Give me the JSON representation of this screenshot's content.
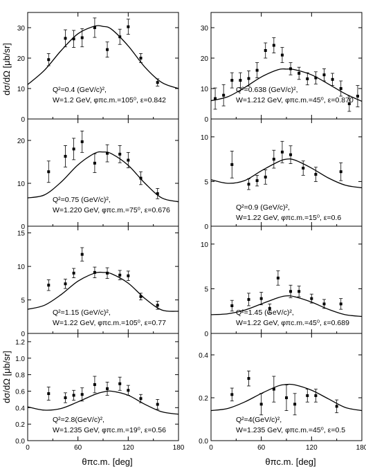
{
  "figure": {
    "y_axis_label": "dσ/dΩ [μb/sr]",
    "x_axis_label": "θπc.m. [deg]",
    "x_ticks": [
      "0",
      "60",
      "120",
      "180"
    ]
  },
  "chart_data": [
    {
      "type": "scatter",
      "panel": "left-row-1",
      "annotation": [
        "Q²=0.4 (GeV/c)²,",
        "W=1.2 GeV, φπc.m.=105⁰, ε=0.842"
      ],
      "xlim": [
        0,
        180
      ],
      "ylim": [
        0,
        35
      ],
      "y_ticks": [
        "0",
        "10",
        "20",
        "30"
      ],
      "x": [
        25,
        45,
        55,
        65,
        80,
        95,
        110,
        120,
        135,
        155
      ],
      "y": [
        19.5,
        26.5,
        26.3,
        26.7,
        30,
        22.8,
        27,
        30.3,
        20,
        12
      ],
      "err": [
        2,
        2.8,
        2.8,
        3,
        3.2,
        2.5,
        2.5,
        2.5,
        1.5,
        1.2
      ],
      "curve": {
        "x": [
          0,
          20,
          40,
          60,
          80,
          90,
          100,
          120,
          140,
          160,
          180
        ],
        "y": [
          11.3,
          16,
          22.5,
          28,
          30.5,
          30.4,
          29.5,
          24,
          17,
          12,
          10
        ]
      }
    },
    {
      "type": "scatter",
      "panel": "right-row-1",
      "annotation": [
        "Q²=0.638 (GeV/c)²,",
        "W=1.212 GeV, φπc.m.=45⁰, ε=0.870"
      ],
      "xlim": [
        0,
        180
      ],
      "ylim": [
        0,
        35
      ],
      "y_ticks": [
        "0",
        "10",
        "20",
        "30"
      ],
      "x": [
        5,
        15,
        25,
        35,
        45,
        55,
        65,
        75,
        85,
        95,
        105,
        115,
        125,
        135,
        145,
        155,
        165,
        175
      ],
      "y": [
        6.7,
        7.8,
        12.7,
        12.7,
        13.3,
        16,
        22.5,
        24.2,
        21,
        16.5,
        15,
        13.2,
        13.5,
        14.5,
        13,
        10,
        5,
        7.5
      ],
      "err": [
        3.5,
        3.5,
        2.5,
        2.5,
        2.5,
        2.5,
        2.5,
        2.5,
        2.5,
        2,
        2,
        2,
        2,
        2,
        2,
        2.5,
        2.5,
        3.5
      ],
      "curve": {
        "x": [
          0,
          20,
          40,
          60,
          80,
          90,
          100,
          120,
          140,
          160,
          180
        ],
        "y": [
          6,
          7.3,
          10.3,
          13.8,
          16.2,
          16.4,
          16.2,
          14.5,
          11.5,
          8.3,
          5.8
        ]
      }
    },
    {
      "type": "scatter",
      "panel": "left-row-2",
      "annotation": [
        "Q²=0.75 (GeV/c)²,",
        "W=1.220 GeV, φπc.m.=75⁰, ε=0.676"
      ],
      "xlim": [
        0,
        180
      ],
      "ylim": [
        0,
        25
      ],
      "y_ticks": [
        "0",
        "10",
        "20"
      ],
      "x": [
        25,
        45,
        55,
        65,
        80,
        95,
        110,
        120,
        135,
        155
      ],
      "y": [
        12.7,
        16.3,
        18,
        19.7,
        14.7,
        17,
        16.8,
        15.4,
        11.2,
        7.6
      ],
      "err": [
        2.5,
        2.5,
        2.5,
        2.5,
        2.2,
        2,
        2,
        1.8,
        1.5,
        1.2
      ],
      "curve": {
        "x": [
          0,
          20,
          40,
          60,
          80,
          90,
          100,
          120,
          140,
          160,
          180
        ],
        "y": [
          6.6,
          7.3,
          10.3,
          14.3,
          17,
          17.3,
          16.9,
          14.2,
          10,
          6.6,
          5.7
        ]
      }
    },
    {
      "type": "scatter",
      "panel": "right-row-2",
      "annotation": [
        "Q²=0.9 (GeV/c)²,",
        "W=1.22 GeV, φπc.m.=15⁰, ε=0.6"
      ],
      "xlim": [
        0,
        180
      ],
      "ylim": [
        0,
        12
      ],
      "y_ticks": [
        "0",
        "5",
        "10"
      ],
      "x": [
        25,
        45,
        55,
        65,
        75,
        85,
        95,
        110,
        125,
        155
      ],
      "y": [
        6.9,
        4.7,
        5.1,
        5.5,
        7.5,
        8.3,
        8,
        6.5,
        5.8,
        6.1
      ],
      "err": [
        1.5,
        0.6,
        0.6,
        0.8,
        1,
        1.2,
        1,
        0.8,
        0.8,
        1
      ],
      "curve": {
        "x": [
          0,
          20,
          40,
          60,
          80,
          90,
          100,
          120,
          140,
          160,
          180
        ],
        "y": [
          5.2,
          4.8,
          5.1,
          6.2,
          7.2,
          7.5,
          7.4,
          6.5,
          5.4,
          4.6,
          4.3
        ]
      }
    },
    {
      "type": "scatter",
      "panel": "left-row-3",
      "annotation": [
        "Q²=1.15 (GeV/c)²,",
        "W=1.22 GeV, φπc.m.=105⁰, ε=0.77"
      ],
      "xlim": [
        0,
        180
      ],
      "ylim": [
        0,
        16
      ],
      "y_ticks": [
        "0",
        "5",
        "10",
        "15"
      ],
      "x": [
        25,
        45,
        55,
        65,
        80,
        95,
        110,
        120,
        135,
        155
      ],
      "y": [
        7.2,
        7.4,
        9,
        11.8,
        9.1,
        9,
        8.7,
        8.6,
        5.5,
        4.2
      ],
      "err": [
        0.8,
        0.7,
        0.7,
        1,
        0.8,
        0.8,
        0.7,
        0.7,
        0.5,
        0.6
      ],
      "curve": {
        "x": [
          0,
          20,
          40,
          60,
          80,
          90,
          100,
          120,
          140,
          160,
          180
        ],
        "y": [
          3.6,
          4.2,
          5.8,
          7.8,
          9,
          9.1,
          8.9,
          7.5,
          5.2,
          3.5,
          3.3
        ]
      }
    },
    {
      "type": "scatter",
      "panel": "right-row-3",
      "annotation": [
        "Q²=1.45 (GeV/c)²,",
        "W=1.22 GeV, φπc.m.=45⁰, ε=0.689"
      ],
      "xlim": [
        0,
        180
      ],
      "ylim": [
        0,
        12
      ],
      "y_ticks": [
        "0",
        "5",
        "10"
      ],
      "x": [
        25,
        45,
        60,
        70,
        80,
        95,
        105,
        120,
        135,
        155
      ],
      "y": [
        3.1,
        3.8,
        3.9,
        2.8,
        6.2,
        4.7,
        4.7,
        3.9,
        3.3,
        3.3
      ],
      "err": [
        0.6,
        0.7,
        0.7,
        0.5,
        0.8,
        0.7,
        0.6,
        0.5,
        0.5,
        0.6
      ],
      "curve": {
        "x": [
          0,
          20,
          40,
          60,
          80,
          90,
          100,
          120,
          140,
          160,
          180
        ],
        "y": [
          2.1,
          2.2,
          2.6,
          3.3,
          4,
          4.2,
          4.1,
          3.5,
          2.7,
          2.1,
          1.9
        ]
      }
    },
    {
      "type": "scatter",
      "panel": "left-row-4",
      "annotation": [
        "Q²=2.8(GeV/c)²,",
        "W=1.235 GeV, φπc.m.=19⁰, ε=0.56"
      ],
      "xlim": [
        0,
        180
      ],
      "ylim": [
        0,
        1.3
      ],
      "y_ticks": [
        "0.0",
        "0.2",
        "0.4",
        "0.6",
        "0.8",
        "1.0",
        "1.2"
      ],
      "x": [
        25,
        45,
        55,
        65,
        80,
        95,
        110,
        120,
        135,
        155
      ],
      "y": [
        0.57,
        0.52,
        0.55,
        0.56,
        0.68,
        0.63,
        0.69,
        0.61,
        0.51,
        0.44
      ],
      "err": [
        0.08,
        0.06,
        0.06,
        0.08,
        0.1,
        0.08,
        0.08,
        0.06,
        0.05,
        0.06
      ],
      "curve": {
        "x": [
          0,
          20,
          40,
          60,
          80,
          90,
          100,
          120,
          140,
          160,
          180
        ],
        "y": [
          0.41,
          0.37,
          0.39,
          0.47,
          0.56,
          0.59,
          0.6,
          0.55,
          0.44,
          0.35,
          0.32
        ]
      }
    },
    {
      "type": "scatter",
      "panel": "right-row-4",
      "annotation": [
        "Q²=4(GeV/c)²,",
        "W=1.235 GeV, φπc.m.=45⁰, ε=0.5"
      ],
      "xlim": [
        0,
        180
      ],
      "ylim": [
        0,
        0.5
      ],
      "y_ticks": [
        "0.0",
        "0.2",
        "0.4"
      ],
      "x": [
        25,
        45,
        60,
        75,
        90,
        100,
        115,
        125,
        150
      ],
      "y": [
        0.215,
        0.29,
        0.17,
        0.24,
        0.2,
        0.17,
        0.21,
        0.21,
        0.16
      ],
      "err": [
        0.03,
        0.035,
        0.05,
        0.06,
        0.06,
        0.05,
        0.03,
        0.03,
        0.03
      ],
      "curve": {
        "x": [
          0,
          20,
          40,
          60,
          80,
          90,
          100,
          120,
          140,
          160,
          180
        ],
        "y": [
          0.14,
          0.15,
          0.18,
          0.22,
          0.255,
          0.262,
          0.26,
          0.235,
          0.195,
          0.155,
          0.14
        ]
      }
    }
  ]
}
